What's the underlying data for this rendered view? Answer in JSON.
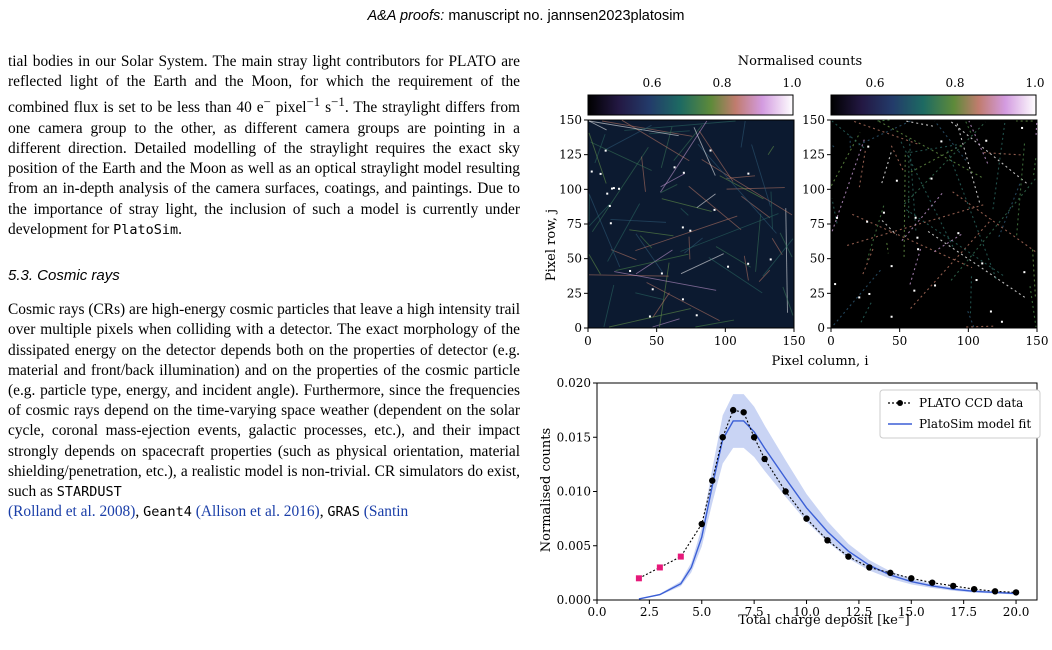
{
  "header": {
    "journal": "A&A proofs:",
    "rest": "manuscript no. jannsen2023platosim"
  },
  "para1": {
    "t1": "tial bodies in our Solar System. The main stray light contributors for PLATO are reflected light of the Earth and the Moon, for which the requirement of the combined flux is set to be less than 40 e",
    "t2": " pixel",
    "t3": " s",
    "t4": ". The straylight differs from one camera group to the other, as different camera groups are pointing in a different direction. Detailed modelling of the straylight requires the exact sky position of the Earth and the Moon as well as an optical straylight model resulting from an in-depth analysis of the camera surfaces, coatings, and paintings. Due to the importance of stray light, the inclusion of such a model is currently under development for ",
    "code": "PlatoSim",
    "end": "."
  },
  "section_title": "5.3. Cosmic rays",
  "para2": {
    "t1": "Cosmic rays (CRs) are high-energy cosmic particles that leave a high intensity trail over multiple pixels when colliding with a detector. The exact morphology of the dissipated energy on the detector depends both on the properties of detector (e.g. material and front/back illumination) and on the properties of the cosmic particle (e.g. particle type, energy, and incident angle). Furthermore, since the frequencies of cosmic rays depend on the time-varying space weather (dependent on the solar cycle, coronal mass-ejection events, galactic processes, etc.), and their impact strongly depends on spacecraft properties (such as physical orientation, material shielding/penetration, etc.), a realistic model is non-trivial. CR simulators do exist, such as ",
    "code1": "STARDUST",
    "cite1": "(Rolland et al. 2008)",
    "code2": "Geant4",
    "cite2": "(Allison et al. 2016)",
    "code3": "GRAS",
    "cite3": "(Santin"
  },
  "chart_data": [
    {
      "type": "heatmap",
      "title": "Normalised counts",
      "colorbar_ticks": [
        "0.6",
        "0.8",
        "1.0"
      ],
      "ylabel": "Pixel row, j",
      "xlabel": "Pixel column, i",
      "x_ticks": [
        "0",
        "50",
        "100",
        "150"
      ],
      "y_ticks": [
        "0",
        "25",
        "50",
        "75",
        "100",
        "125",
        "150"
      ],
      "xlim": [
        0,
        150
      ],
      "ylim": [
        0,
        150
      ],
      "panels": [
        "left",
        "right"
      ]
    },
    {
      "type": "line",
      "xlabel": "Total charge deposit [ke⁻]",
      "ylabel": "Normalised counts",
      "xlim": [
        0,
        21
      ],
      "ylim": [
        0,
        0.02
      ],
      "x_ticks": [
        "0.0",
        "2.5",
        "5.0",
        "7.5",
        "10.0",
        "12.5",
        "15.0",
        "17.5",
        "20.0"
      ],
      "y_ticks": [
        "0.000",
        "0.005",
        "0.010",
        "0.015",
        "0.020"
      ],
      "legend_position": "top-right",
      "series": [
        {
          "name": "PLATO CCD data",
          "x": [
            2,
            3,
            4,
            5,
            5.5,
            6,
            6.5,
            7,
            7.5,
            8,
            9,
            10,
            11,
            12,
            13,
            14,
            15,
            16,
            17,
            18,
            19,
            20
          ],
          "y": [
            0.002,
            0.003,
            0.004,
            0.007,
            0.011,
            0.015,
            0.0175,
            0.0173,
            0.015,
            0.013,
            0.01,
            0.0075,
            0.0055,
            0.004,
            0.003,
            0.0025,
            0.002,
            0.0016,
            0.0013,
            0.001,
            0.0008,
            0.0007
          ],
          "pink_indices": [
            0,
            1,
            2
          ]
        },
        {
          "name": "PlatoSim model fit",
          "x": [
            2,
            3,
            4,
            4.5,
            5,
            5.5,
            6,
            6.5,
            7,
            7.5,
            8,
            9,
            10,
            11,
            12,
            13,
            14,
            15,
            16,
            17,
            18,
            19,
            20
          ],
          "y": [
            0.0001,
            0.0005,
            0.0015,
            0.003,
            0.0058,
            0.0105,
            0.0148,
            0.0165,
            0.0165,
            0.0155,
            0.014,
            0.0112,
            0.0085,
            0.0063,
            0.0045,
            0.0032,
            0.0023,
            0.0017,
            0.0013,
            0.001,
            0.0008,
            0.0007,
            0.0006
          ],
          "band": 0.15
        }
      ]
    }
  ],
  "colors": {
    "data_series": "#000000",
    "pink_points": "#e6197a",
    "model_line": "#3b5fd6",
    "band": "#b7c6f0",
    "link": "#1a3ea8"
  }
}
